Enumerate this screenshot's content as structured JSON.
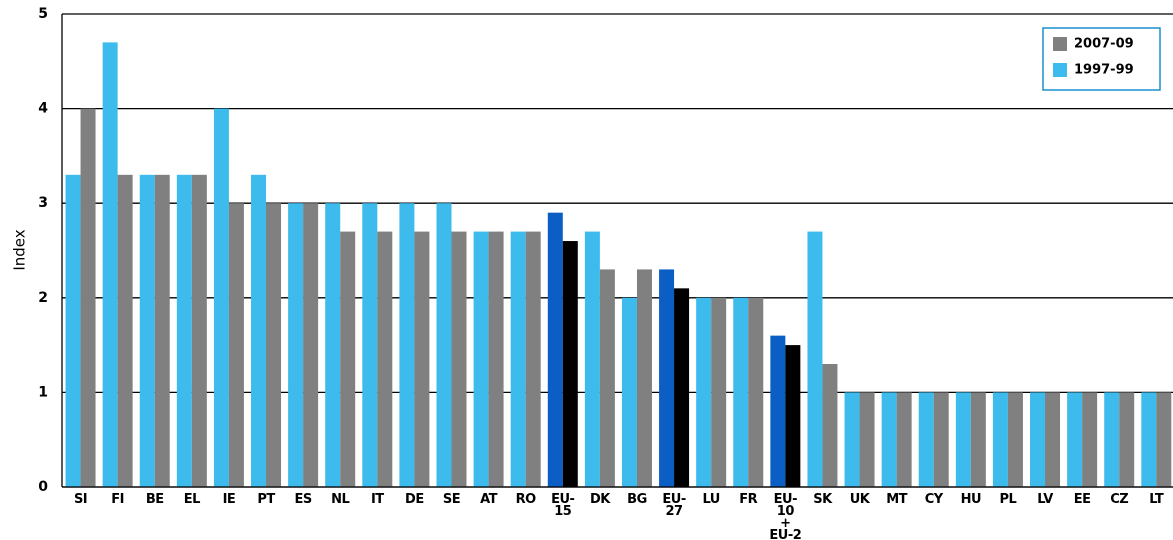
{
  "chart_data": {
    "type": "bar",
    "ylabel": "Index",
    "categories": [
      "SI",
      "FI",
      "BE",
      "EL",
      "IE",
      "PT",
      "ES",
      "NL",
      "IT",
      "DE",
      "SE",
      "AT",
      "RO",
      "EU-15",
      "DK",
      "BG",
      "EU-27",
      "LU",
      "FR",
      "EU-10\n+\nEU-2",
      "SK",
      "UK",
      "MT",
      "CY",
      "HU",
      "PL",
      "LV",
      "EE",
      "CZ",
      "LT"
    ],
    "series": [
      {
        "name": "1997-99",
        "color": "#3dbbec",
        "colors": [
          "#3dbbec",
          "#3dbbec",
          "#3dbbec",
          "#3dbbec",
          "#3dbbec",
          "#3dbbec",
          "#3dbbec",
          "#3dbbec",
          "#3dbbec",
          "#3dbbec",
          "#3dbbec",
          "#3dbbec",
          "#3dbbec",
          "#0b5fc4",
          "#3dbbec",
          "#3dbbec",
          "#0b5fc4",
          "#3dbbec",
          "#3dbbec",
          "#0b5fc4",
          "#3dbbec",
          "#3dbbec",
          "#3dbbec",
          "#3dbbec",
          "#3dbbec",
          "#3dbbec",
          "#3dbbec",
          "#3dbbec",
          "#3dbbec",
          "#3dbbec"
        ],
        "values": [
          3.3,
          4.7,
          3.3,
          3.3,
          4.0,
          3.3,
          3.0,
          3.0,
          3.0,
          3.0,
          3.0,
          2.7,
          2.7,
          2.9,
          2.7,
          2.0,
          2.3,
          2.0,
          2.0,
          1.6,
          2.7,
          1,
          1,
          1,
          1,
          1,
          1,
          1,
          1,
          1
        ]
      },
      {
        "name": "2007-09",
        "color": "#808080",
        "colors": [
          "#808080",
          "#808080",
          "#808080",
          "#808080",
          "#808080",
          "#808080",
          "#808080",
          "#808080",
          "#808080",
          "#808080",
          "#808080",
          "#808080",
          "#808080",
          "#000000",
          "#808080",
          "#808080",
          "#000000",
          "#808080",
          "#808080",
          "#000000",
          "#808080",
          "#808080",
          "#808080",
          "#808080",
          "#808080",
          "#808080",
          "#808080",
          "#808080",
          "#808080",
          "#808080"
        ],
        "values": [
          4.0,
          3.3,
          3.3,
          3.3,
          3.0,
          3.0,
          3.0,
          2.7,
          2.7,
          2.7,
          2.7,
          2.7,
          2.7,
          2.6,
          2.3,
          2.3,
          2.1,
          2.0,
          2.0,
          1.5,
          1.3,
          1,
          1,
          1,
          1,
          1,
          1,
          1,
          1,
          1
        ]
      }
    ],
    "legend_order": [
      1,
      0
    ],
    "ylim": [
      0,
      5
    ],
    "yticks": [
      0,
      1,
      2,
      3,
      4,
      5
    ],
    "grid": true
  }
}
